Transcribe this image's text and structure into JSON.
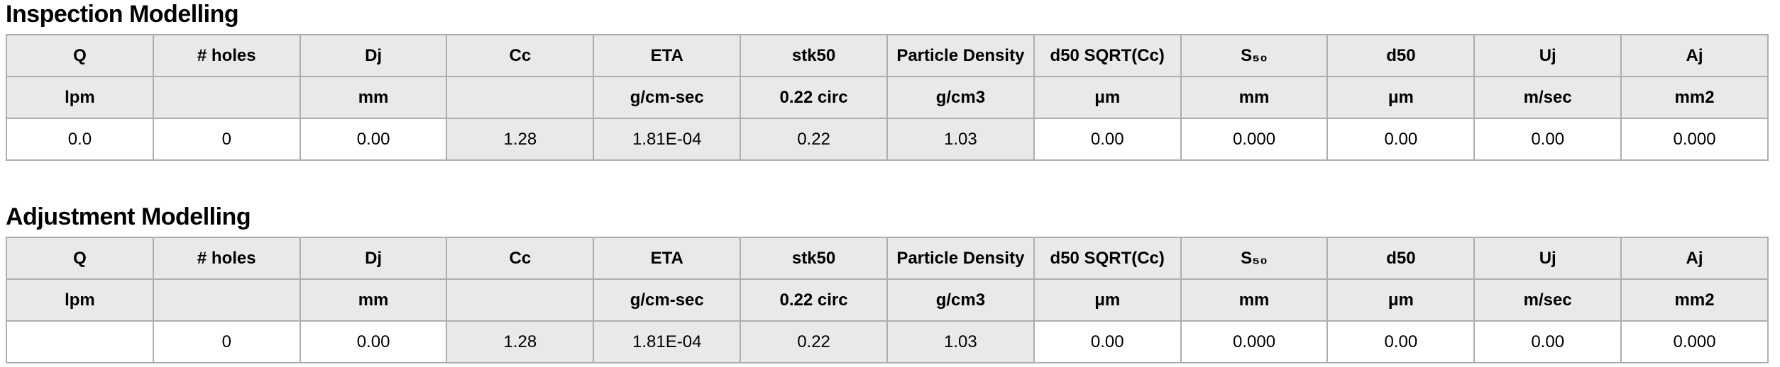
{
  "table": {
    "column_keys": [
      "q",
      "holes",
      "dj",
      "cc",
      "eta",
      "stk50",
      "particle-density",
      "d50-sqrt-cc",
      "s50",
      "d50",
      "uj",
      "aj"
    ],
    "columns": [
      "Q",
      "# holes",
      "Dj",
      "Cc",
      "ETA",
      "stk50",
      "Particle Density",
      "d50 SQRT(Cc)",
      "S₅₀",
      "d50",
      "Uj",
      "Aj"
    ],
    "units": [
      "lpm",
      "",
      "mm",
      "",
      "g/cm-sec",
      "0.22 circ",
      "g/cm3",
      "μm",
      "mm",
      "μm",
      "m/sec",
      "mm2"
    ],
    "computed_columns": [
      3,
      4,
      5,
      6
    ]
  },
  "sections": [
    {
      "key": "inspection",
      "title": "Inspection Modelling",
      "values": [
        "0.0",
        "0",
        "0.00",
        "1.28",
        "1.81E-04",
        "0.22",
        "1.03",
        "0.00",
        "0.000",
        "0.00",
        "0.00",
        "0.000"
      ]
    },
    {
      "key": "adjustment",
      "title": "Adjustment Modelling",
      "values": [
        "",
        "0",
        "0.00",
        "1.28",
        "1.81E-04",
        "0.22",
        "1.03",
        "0.00",
        "0.000",
        "0.00",
        "0.00",
        "0.000"
      ]
    }
  ],
  "colors": {
    "header_bg": "#e9e9e9",
    "computed_bg": "#e9e9e9",
    "editable_bg": "#ffffff",
    "border": "#aeaeae",
    "text": "#000000"
  }
}
